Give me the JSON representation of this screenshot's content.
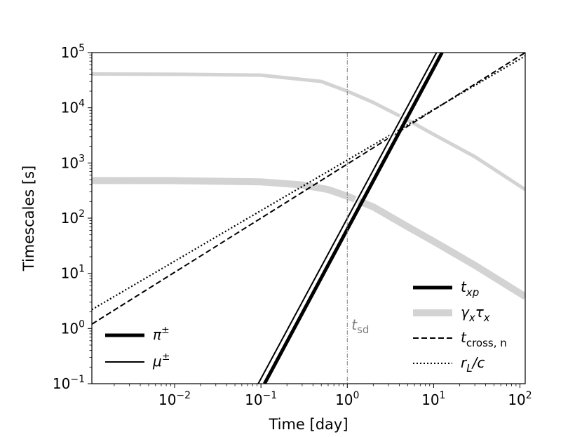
{
  "chart_data": {
    "type": "line",
    "title": "",
    "xlabel": "Time [day]",
    "ylabel": "Timescales [s]",
    "xscale": "log",
    "yscale": "log",
    "xlim": [
      0.0011,
      115
    ],
    "ylim": [
      0.1,
      100000
    ],
    "x_ticks": [
      {
        "value": 0.01,
        "base": "10",
        "exp": "−2"
      },
      {
        "value": 0.1,
        "base": "10",
        "exp": "−1"
      },
      {
        "value": 1,
        "base": "10",
        "exp": "0"
      },
      {
        "value": 10,
        "base": "10",
        "exp": "1"
      },
      {
        "value": 100,
        "base": "10",
        "exp": "2"
      }
    ],
    "y_ticks": [
      {
        "value": 0.1,
        "base": "10",
        "exp": "−1"
      },
      {
        "value": 1,
        "base": "10",
        "exp": "0"
      },
      {
        "value": 10,
        "base": "10",
        "exp": "1"
      },
      {
        "value": 100,
        "base": "10",
        "exp": "2"
      },
      {
        "value": 1000,
        "base": "10",
        "exp": "3"
      },
      {
        "value": 10000,
        "base": "10",
        "exp": "4"
      },
      {
        "value": 100000,
        "base": "10",
        "exp": "5"
      }
    ],
    "grid": false,
    "vline": {
      "x": 1,
      "label": "t",
      "label_sub": "sd",
      "color": "#808080"
    },
    "series": [
      {
        "key": "gt_pi",
        "color": "#d3d3d3",
        "style": "solid",
        "weight": "thick",
        "x": [
          0.0011,
          0.01,
          0.1,
          0.3,
          0.6,
          1,
          2,
          5,
          10,
          30,
          115
        ],
        "y": [
          480,
          478,
          455,
          400,
          330,
          250,
          160,
          70,
          38,
          14,
          3.8
        ]
      },
      {
        "key": "gt_mu",
        "color": "#d3d3d3",
        "style": "solid",
        "weight": "medium",
        "x": [
          0.0011,
          0.01,
          0.1,
          0.5,
          1,
          2,
          5,
          10,
          30,
          115
        ],
        "y": [
          41000,
          40500,
          39000,
          30000,
          20000,
          12500,
          6000,
          3300,
          1300,
          330
        ]
      },
      {
        "key": "t_cross",
        "color": "#000000",
        "style": "dashed",
        "weight": "thin",
        "x": [
          0.0011,
          115
        ],
        "y": [
          1.2,
          100000
        ]
      },
      {
        "key": "r_L_c",
        "color": "#000000",
        "style": "dotted",
        "weight": "thin",
        "x": [
          0.0011,
          115
        ],
        "y": [
          2.2,
          87000
        ]
      },
      {
        "key": "txp_pi",
        "color": "#000000",
        "style": "solid",
        "weight": "thick",
        "x": [
          0.11,
          12.5
        ],
        "y": [
          0.1,
          100000
        ]
      },
      {
        "key": "txp_mu",
        "color": "#000000",
        "style": "solid",
        "weight": "thin",
        "x": [
          0.093,
          10.8
        ],
        "y": [
          0.1,
          100000
        ]
      }
    ],
    "legend_left": {
      "placement": "lower-left",
      "entries": [
        {
          "text": "π",
          "sup": "±",
          "color": "#000000",
          "style": "solid",
          "weight": "thick"
        },
        {
          "text": "μ",
          "sup": "±",
          "color": "#000000",
          "style": "solid",
          "weight": "thin"
        }
      ]
    },
    "legend_right": {
      "placement": "lower-right",
      "entries": [
        {
          "text": "t",
          "sub": "xp",
          "color": "#000000",
          "style": "solid",
          "weight": "thick"
        },
        {
          "text": "γ",
          "sub": "x",
          "text2": "τ",
          "sub2": "x",
          "color": "#d3d3d3",
          "style": "solid",
          "weight": "xthick"
        },
        {
          "text": "t",
          "sub": "cross, n",
          "color": "#000000",
          "style": "dashed",
          "weight": "thin"
        },
        {
          "text": "r",
          "sub": "L",
          "text2": "/c",
          "color": "#000000",
          "style": "dotted",
          "weight": "thin"
        }
      ]
    }
  }
}
